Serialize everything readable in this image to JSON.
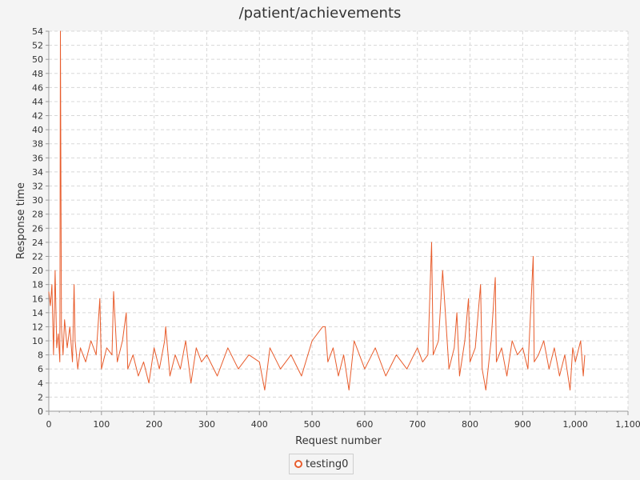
{
  "chart_data": {
    "type": "line",
    "title": "/patient/achievements",
    "xlabel": "Request number",
    "ylabel": "Response time",
    "xlim": [
      0,
      1100
    ],
    "ylim": [
      0,
      54
    ],
    "x_ticks": [
      0,
      100,
      200,
      300,
      400,
      500,
      600,
      700,
      800,
      900,
      1000,
      1100
    ],
    "x_tick_labels": [
      "0",
      "100",
      "200",
      "300",
      "400",
      "500",
      "600",
      "700",
      "800",
      "900",
      "1,000",
      "1,100"
    ],
    "y_ticks": [
      0,
      2,
      4,
      6,
      8,
      10,
      12,
      14,
      16,
      18,
      20,
      22,
      24,
      26,
      28,
      30,
      32,
      34,
      36,
      38,
      40,
      42,
      44,
      46,
      48,
      50,
      52,
      54
    ],
    "grid": true,
    "legend_position": "bottom-center",
    "series": [
      {
        "name": "testing0",
        "color": "#e85c2c",
        "x": [
          0,
          3,
          6,
          9,
          12,
          15,
          18,
          21,
          22,
          24,
          27,
          30,
          35,
          40,
          45,
          48,
          50,
          55,
          60,
          70,
          80,
          90,
          97,
          100,
          110,
          120,
          123,
          130,
          140,
          147,
          150,
          160,
          170,
          180,
          190,
          200,
          210,
          220,
          222,
          230,
          240,
          250,
          260,
          270,
          280,
          290,
          300,
          320,
          340,
          360,
          380,
          400,
          410,
          420,
          440,
          460,
          480,
          500,
          520,
          525,
          530,
          540,
          550,
          560,
          570,
          580,
          600,
          620,
          640,
          660,
          680,
          700,
          710,
          720,
          723,
          727,
          730,
          740,
          748,
          760,
          770,
          775,
          780,
          790,
          797,
          800,
          810,
          820,
          823,
          830,
          840,
          848,
          850,
          860,
          870,
          880,
          890,
          900,
          910,
          920,
          922,
          930,
          940,
          950,
          960,
          970,
          980,
          990,
          995,
          1000,
          1010,
          1015,
          1018
        ],
        "y": [
          17,
          15,
          18,
          8,
          20,
          9,
          11,
          7,
          54,
          12,
          8,
          13,
          9,
          12,
          7,
          18,
          10,
          6,
          9,
          7,
          10,
          8,
          16,
          6,
          9,
          8,
          17,
          7,
          10,
          14,
          6,
          8,
          5,
          7,
          4,
          9,
          6,
          10,
          12,
          5,
          8,
          6,
          10,
          4,
          9,
          7,
          8,
          5,
          9,
          6,
          8,
          7,
          3,
          9,
          6,
          8,
          5,
          10,
          12,
          12,
          7,
          9,
          5,
          8,
          3,
          10,
          6,
          9,
          5,
          8,
          6,
          9,
          7,
          8,
          15,
          24,
          8,
          10,
          20,
          6,
          9,
          14,
          5,
          10,
          16,
          7,
          9,
          18,
          6,
          3,
          10,
          19,
          7,
          9,
          5,
          10,
          8,
          9,
          6,
          22,
          7,
          8,
          10,
          6,
          9,
          5,
          8,
          3,
          9,
          7,
          10,
          5,
          8
        ]
      }
    ]
  }
}
